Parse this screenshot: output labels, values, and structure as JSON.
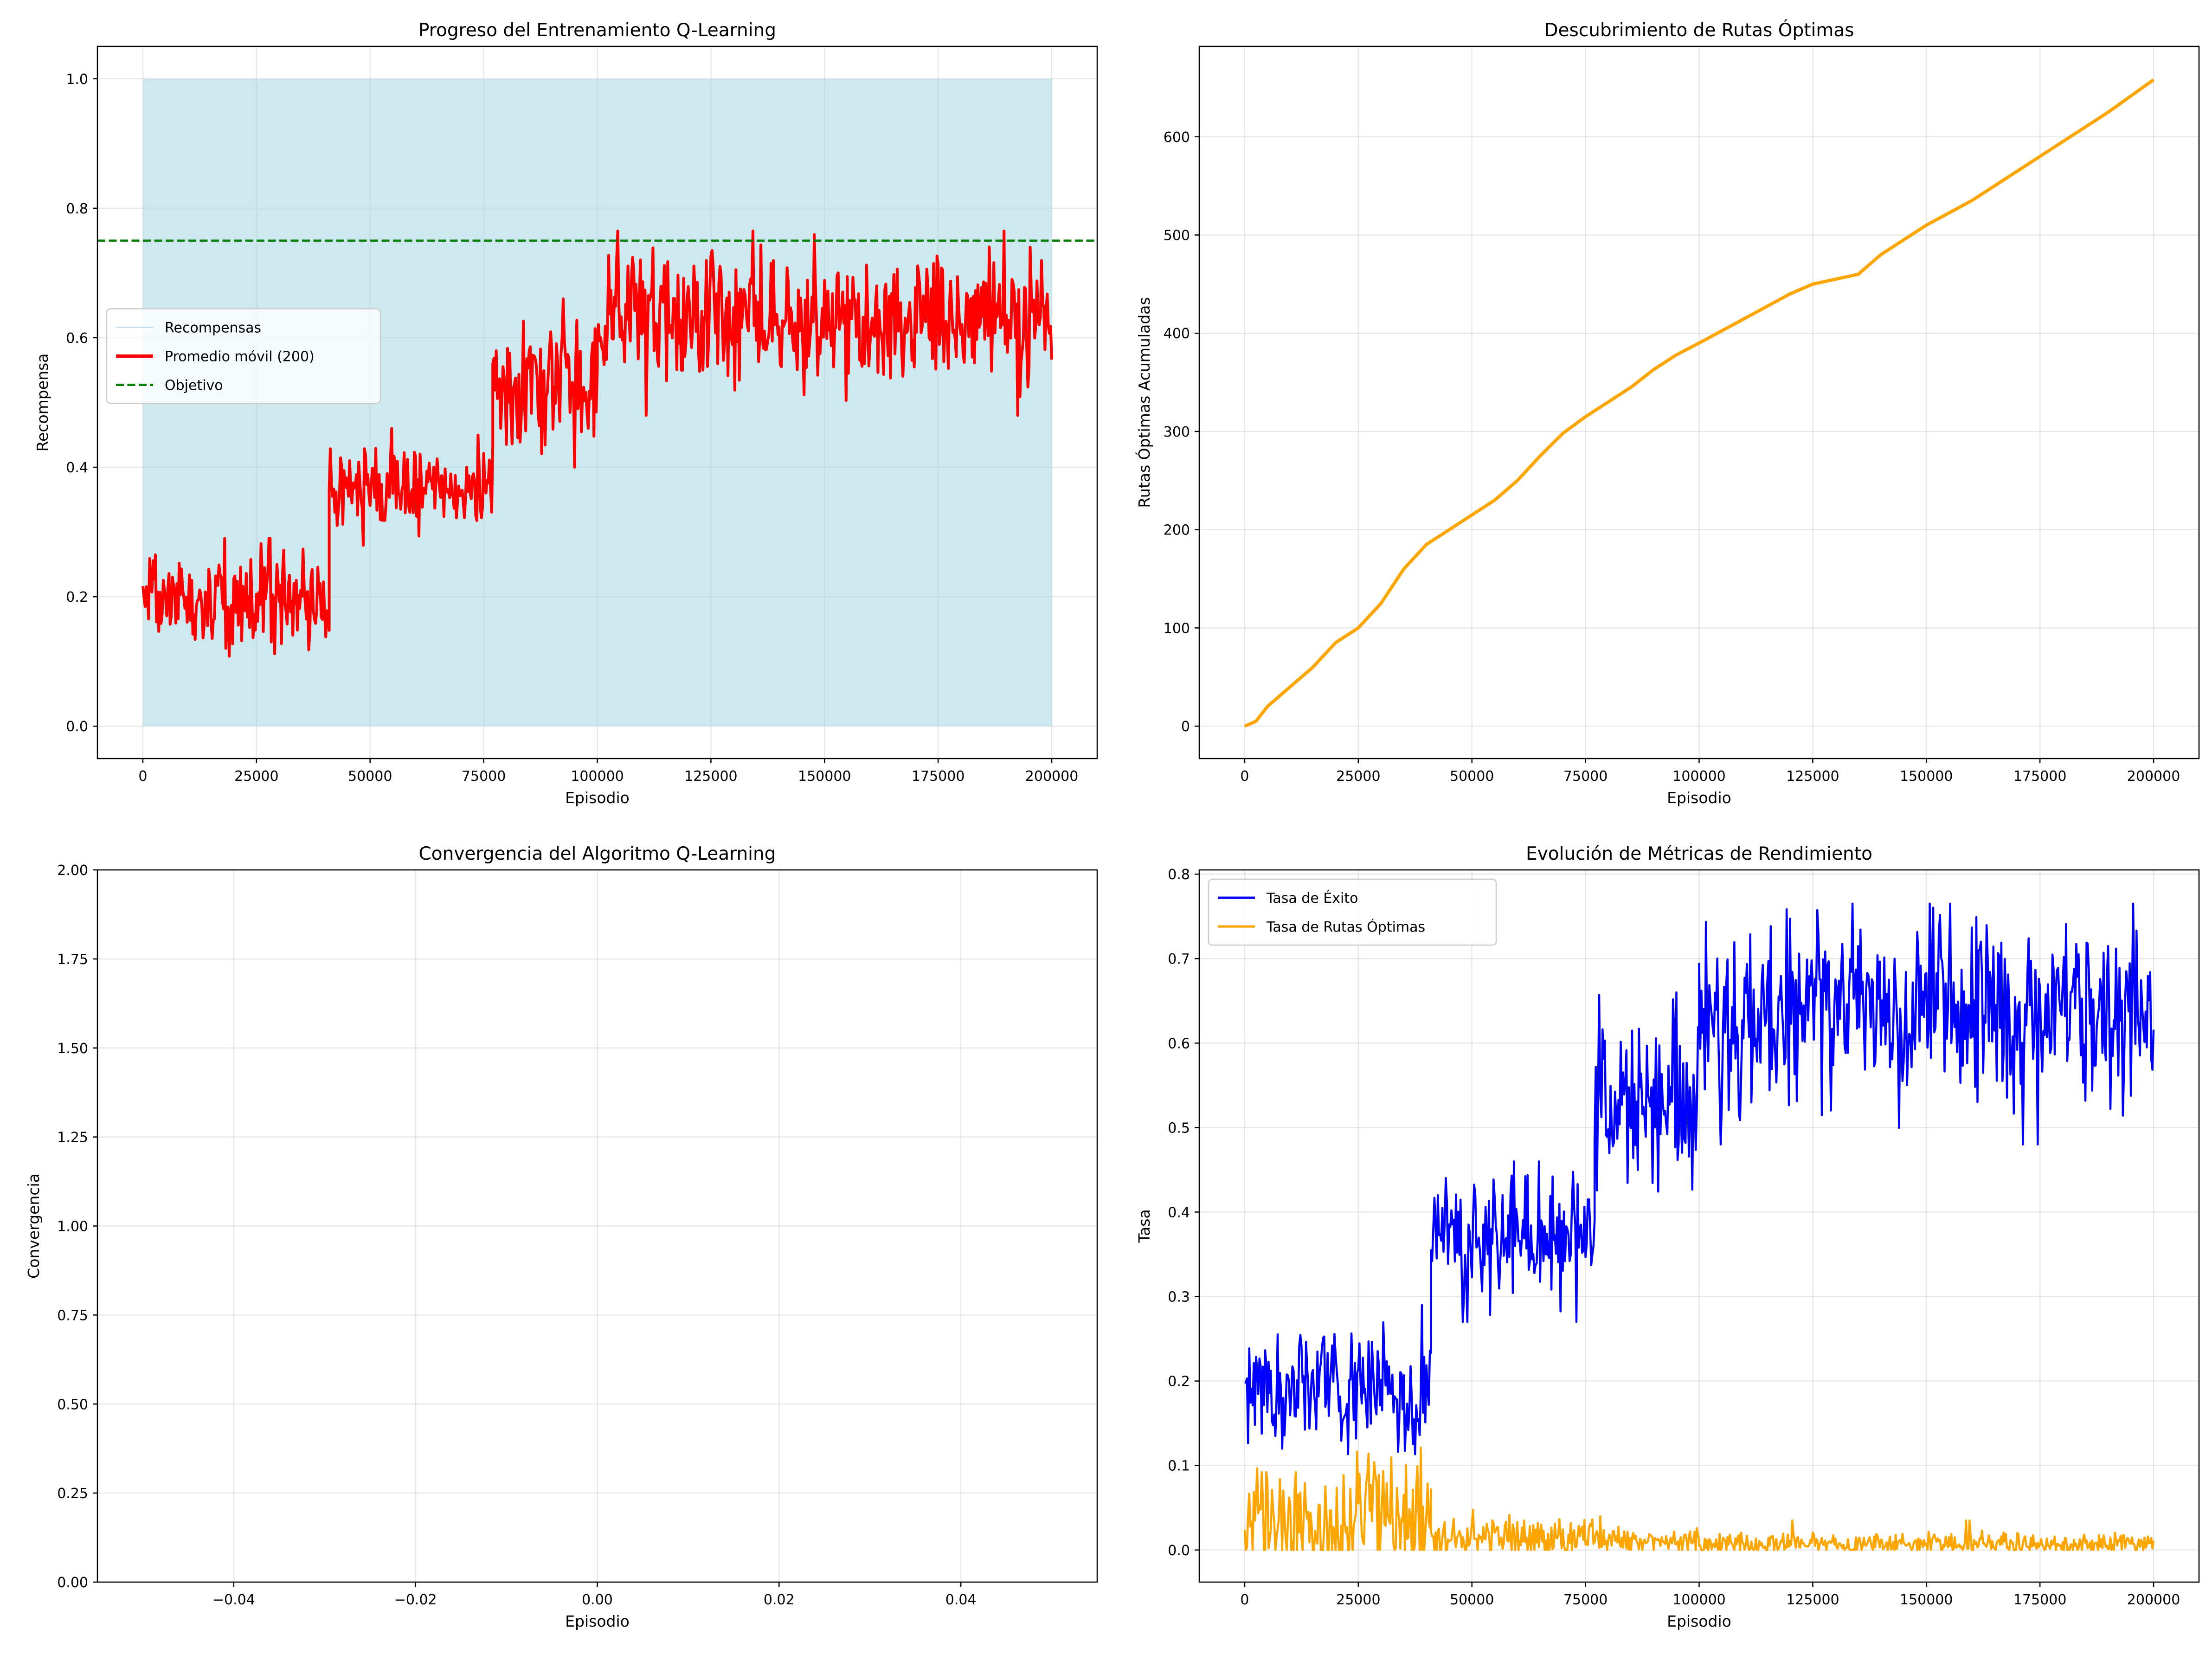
{
  "chart_data": [
    {
      "type": "line",
      "title": "Progreso del Entrenamiento Q-Learning",
      "xlabel": "Episodio",
      "ylabel": "Recompensa",
      "xlim": [
        -10000,
        210000
      ],
      "ylim": [
        -0.05,
        1.05
      ],
      "xticks": [
        0,
        25000,
        50000,
        75000,
        100000,
        125000,
        150000,
        175000,
        200000
      ],
      "yticks": [
        0.0,
        0.2,
        0.4,
        0.6,
        0.8,
        1.0
      ],
      "xtick_labels": [
        "0",
        "25000",
        "50000",
        "75000",
        "100000",
        "125000",
        "150000",
        "175000",
        "200000"
      ],
      "ytick_labels": [
        "0.0",
        "0.2",
        "0.4",
        "0.6",
        "0.8",
        "1.0"
      ],
      "grid": true,
      "legend_position": "center-left",
      "series": [
        {
          "name": "Recompensas",
          "color": "#add8e6",
          "style": "fill",
          "x_range": [
            0,
            200000
          ],
          "y_range": [
            0,
            1
          ]
        },
        {
          "name": "Promedio móvil (200)",
          "color": "#ff0000",
          "style": "noisy-line",
          "segments": [
            {
              "x": [
                0,
                41000
              ],
              "mean": 0.19,
              "min": 0.1,
              "max": 0.29
            },
            {
              "x": [
                41000,
                77000
              ],
              "mean": 0.37,
              "min": 0.27,
              "max": 0.46
            },
            {
              "x": [
                77000,
                100000
              ],
              "mean": 0.53,
              "min": 0.4,
              "max": 0.66
            },
            {
              "x": [
                100000,
                200000
              ],
              "mean": 0.635,
              "min": 0.48,
              "max": 0.765
            }
          ]
        },
        {
          "name": "Objetivo",
          "color": "#008000",
          "style": "dashed",
          "y": 0.75
        }
      ]
    },
    {
      "type": "line",
      "title": "Descubrimiento de Rutas Óptimas",
      "xlabel": "Episodio",
      "ylabel": "Rutas Óptimas Acumuladas",
      "xlim": [
        -10000,
        210000
      ],
      "ylim": [
        -33,
        692
      ],
      "xticks": [
        0,
        25000,
        50000,
        75000,
        100000,
        125000,
        150000,
        175000,
        200000
      ],
      "yticks": [
        0,
        100,
        200,
        300,
        400,
        500,
        600
      ],
      "xtick_labels": [
        "0",
        "25000",
        "50000",
        "75000",
        "100000",
        "125000",
        "150000",
        "175000",
        "200000"
      ],
      "ytick_labels": [
        "0",
        "100",
        "200",
        "300",
        "400",
        "500",
        "600"
      ],
      "grid": true,
      "series": [
        {
          "color": "#ffa500",
          "x": [
            0,
            2500,
            5000,
            10000,
            15000,
            20000,
            25000,
            30000,
            35000,
            40000,
            45000,
            50000,
            55000,
            60000,
            65000,
            70000,
            75000,
            80000,
            85000,
            90000,
            95000,
            100000,
            110000,
            120000,
            125000,
            130000,
            135000,
            140000,
            150000,
            160000,
            170000,
            180000,
            190000,
            200000
          ],
          "y": [
            0,
            5,
            20,
            40,
            60,
            85,
            100,
            125,
            160,
            185,
            200,
            215,
            230,
            250,
            275,
            298,
            315,
            330,
            345,
            363,
            378,
            390,
            415,
            440,
            450,
            455,
            460,
            480,
            510,
            535,
            565,
            595,
            625,
            658
          ]
        }
      ]
    },
    {
      "type": "line",
      "title": "Convergencia del Algoritmo Q-Learning",
      "xlabel": "Episodio",
      "ylabel": "Convergencia",
      "xlim": [
        -0.055,
        0.055
      ],
      "ylim": [
        0,
        2
      ],
      "xticks": [
        -0.04,
        -0.02,
        0.0,
        0.02,
        0.04
      ],
      "yticks": [
        0.0,
        0.25,
        0.5,
        0.75,
        1.0,
        1.25,
        1.5,
        1.75,
        2.0
      ],
      "xtick_labels": [
        "−0.04",
        "−0.02",
        "0.00",
        "0.02",
        "0.04"
      ],
      "ytick_labels": [
        "0.00",
        "0.25",
        "0.50",
        "0.75",
        "1.00",
        "1.25",
        "1.50",
        "1.75",
        "2.00"
      ],
      "grid": true,
      "series": []
    },
    {
      "type": "line",
      "title": "Evolución de Métricas de Rendimiento",
      "xlabel": "Episodio",
      "ylabel": "Tasa",
      "xlim": [
        -10000,
        210000
      ],
      "ylim": [
        -0.038,
        0.805
      ],
      "xticks": [
        0,
        25000,
        50000,
        75000,
        100000,
        125000,
        150000,
        175000,
        200000
      ],
      "yticks": [
        0.0,
        0.1,
        0.2,
        0.3,
        0.4,
        0.5,
        0.6,
        0.7,
        0.8
      ],
      "xtick_labels": [
        "0",
        "25000",
        "50000",
        "75000",
        "100000",
        "125000",
        "150000",
        "175000",
        "200000"
      ],
      "ytick_labels": [
        "0.0",
        "0.1",
        "0.2",
        "0.3",
        "0.4",
        "0.5",
        "0.6",
        "0.7",
        "0.8"
      ],
      "grid": true,
      "legend_position": "upper-left",
      "series": [
        {
          "name": "Tasa de Éxito",
          "color": "#0000ff",
          "style": "noisy-line",
          "segments": [
            {
              "x": [
                0,
                41000
              ],
              "mean": 0.19,
              "min": 0.1,
              "max": 0.29
            },
            {
              "x": [
                41000,
                77000
              ],
              "mean": 0.37,
              "min": 0.27,
              "max": 0.46
            },
            {
              "x": [
                77000,
                100000
              ],
              "mean": 0.53,
              "min": 0.4,
              "max": 0.66
            },
            {
              "x": [
                100000,
                200000
              ],
              "mean": 0.635,
              "min": 0.48,
              "max": 0.765
            }
          ]
        },
        {
          "name": "Tasa de Rutas Óptimas",
          "color": "#ffa500",
          "style": "noisy-line",
          "segments": [
            {
              "x": [
                0,
                41000
              ],
              "mean": 0.035,
              "min": 0.0,
              "max": 0.2
            },
            {
              "x": [
                41000,
                77000
              ],
              "mean": 0.015,
              "min": 0.0,
              "max": 0.07
            },
            {
              "x": [
                77000,
                100000
              ],
              "mean": 0.01,
              "min": 0.0,
              "max": 0.04
            },
            {
              "x": [
                100000,
                200000
              ],
              "mean": 0.007,
              "min": 0.0,
              "max": 0.035
            }
          ]
        }
      ]
    }
  ]
}
